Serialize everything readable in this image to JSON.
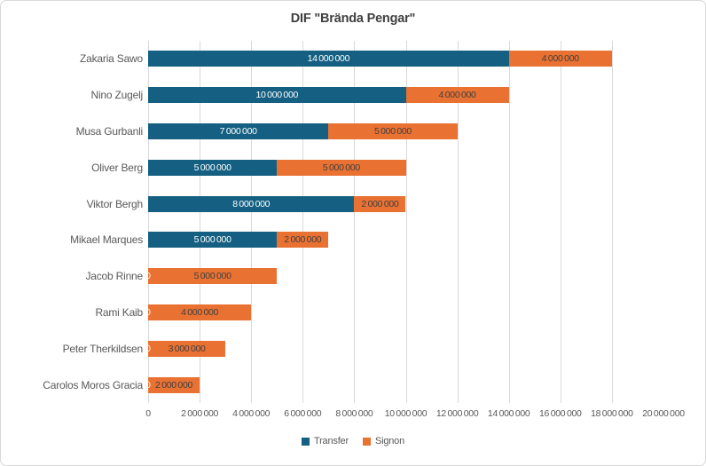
{
  "chart_data": {
    "type": "bar",
    "orientation": "horizontal",
    "stacked": true,
    "title": "DIF \"Brända Pengar\"",
    "categories": [
      "Zakaria Sawo",
      "Nino Zugelj",
      "Musa Gurbanli",
      "Oliver Berg",
      "Viktor Bergh",
      "Mikael Marques",
      "Jacob Rinne",
      "Rami Kaib",
      "Peter Therkildsen",
      "Carolos Moros Gracia"
    ],
    "series": [
      {
        "name": "Transfer",
        "color": "#156082",
        "label_color": "#FFFFFF",
        "values": [
          14000000,
          10000000,
          7000000,
          5000000,
          8000000,
          5000000,
          0,
          0,
          0,
          0
        ]
      },
      {
        "name": "Signon",
        "color": "#E97132",
        "label_color": "#404040",
        "values": [
          4000000,
          4000000,
          5000000,
          5000000,
          2000000,
          2000000,
          5000000,
          4000000,
          3000000,
          2000000
        ]
      }
    ],
    "xlim": [
      0,
      20000000
    ],
    "x_ticks": [
      "0",
      "2 000 000",
      "4 000 000",
      "6 000 000",
      "8 000 000",
      "10 000 000",
      "12 000 000",
      "14 000 000",
      "16 000 000",
      "18 000 000",
      "20 000 000"
    ],
    "grid": "vertical",
    "gridline_color": "#D9D9D9",
    "legend_position": "bottom",
    "legend": [
      {
        "label": "Transfer",
        "color": "#156082"
      },
      {
        "label": "Signon",
        "color": "#E97132"
      }
    ]
  }
}
